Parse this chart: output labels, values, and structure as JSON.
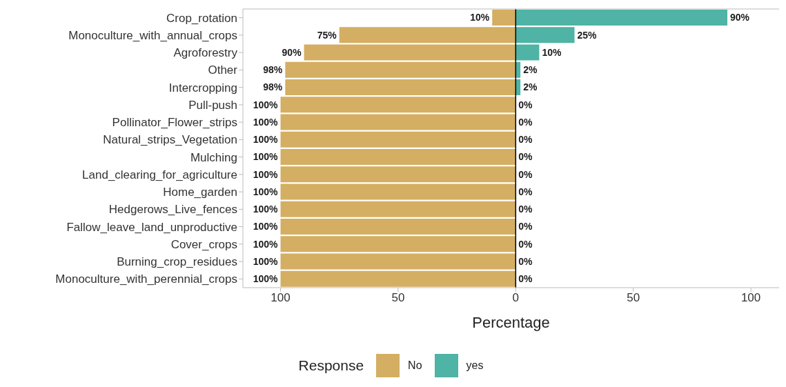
{
  "chart_data": {
    "type": "bar",
    "orientation": "horizontal",
    "xlabel": "Percentage",
    "legend_title": "Response",
    "legend": "bottom",
    "grid": false,
    "categories": [
      "Crop_rotation",
      "Monoculture_with_annual_crops",
      "Agroforestry",
      "Other",
      "Intercropping",
      "Pull-push",
      "Pollinator_Flower_strips",
      "Natural_strips_Vegetation",
      "Mulching",
      "Land_clearing_for_agriculture",
      "Home_garden",
      "Hedgerows_Live_fences",
      "Fallow_leave_land_unproductive",
      "Cover_crops",
      "Burning_crop_residues",
      "Monoculture_with_perennial_crops"
    ],
    "series": [
      {
        "name": "No",
        "color": "#d4ae62",
        "values": [
          10,
          75,
          90,
          98,
          98,
          100,
          100,
          100,
          100,
          100,
          100,
          100,
          100,
          100,
          100,
          100
        ],
        "base": [
          -10,
          -75,
          -90,
          -98,
          -98,
          -100,
          -100,
          -100,
          -100,
          -100,
          -100,
          -100,
          -100,
          -100,
          -100,
          -100
        ],
        "value_labels": [
          "10%",
          "75%",
          "90%",
          "98%",
          "98%",
          "100%",
          "100%",
          "100%",
          "100%",
          "100%",
          "100%",
          "100%",
          "100%",
          "100%",
          "100%",
          "100%"
        ]
      },
      {
        "name": "yes",
        "color": "#4fb3a5",
        "values": [
          90,
          25,
          10,
          2,
          2,
          0,
          0,
          0,
          0,
          0,
          0,
          0,
          0,
          0,
          0,
          0
        ],
        "value_labels": [
          "90%",
          "25%",
          "10%",
          "2%",
          "2%",
          "0%",
          "0%",
          "0%",
          "0%",
          "0%",
          "0%",
          "0%",
          "0%",
          "0%",
          "0%",
          "0%"
        ]
      }
    ],
    "xlim": [
      -116,
      112
    ],
    "xticks": [
      {
        "value": -100,
        "label": "100"
      },
      {
        "value": -50,
        "label": "50"
      },
      0,
      50,
      100
    ],
    "ref_lines": [
      {
        "axis": "x",
        "value": 0,
        "color": "#000000"
      }
    ]
  }
}
